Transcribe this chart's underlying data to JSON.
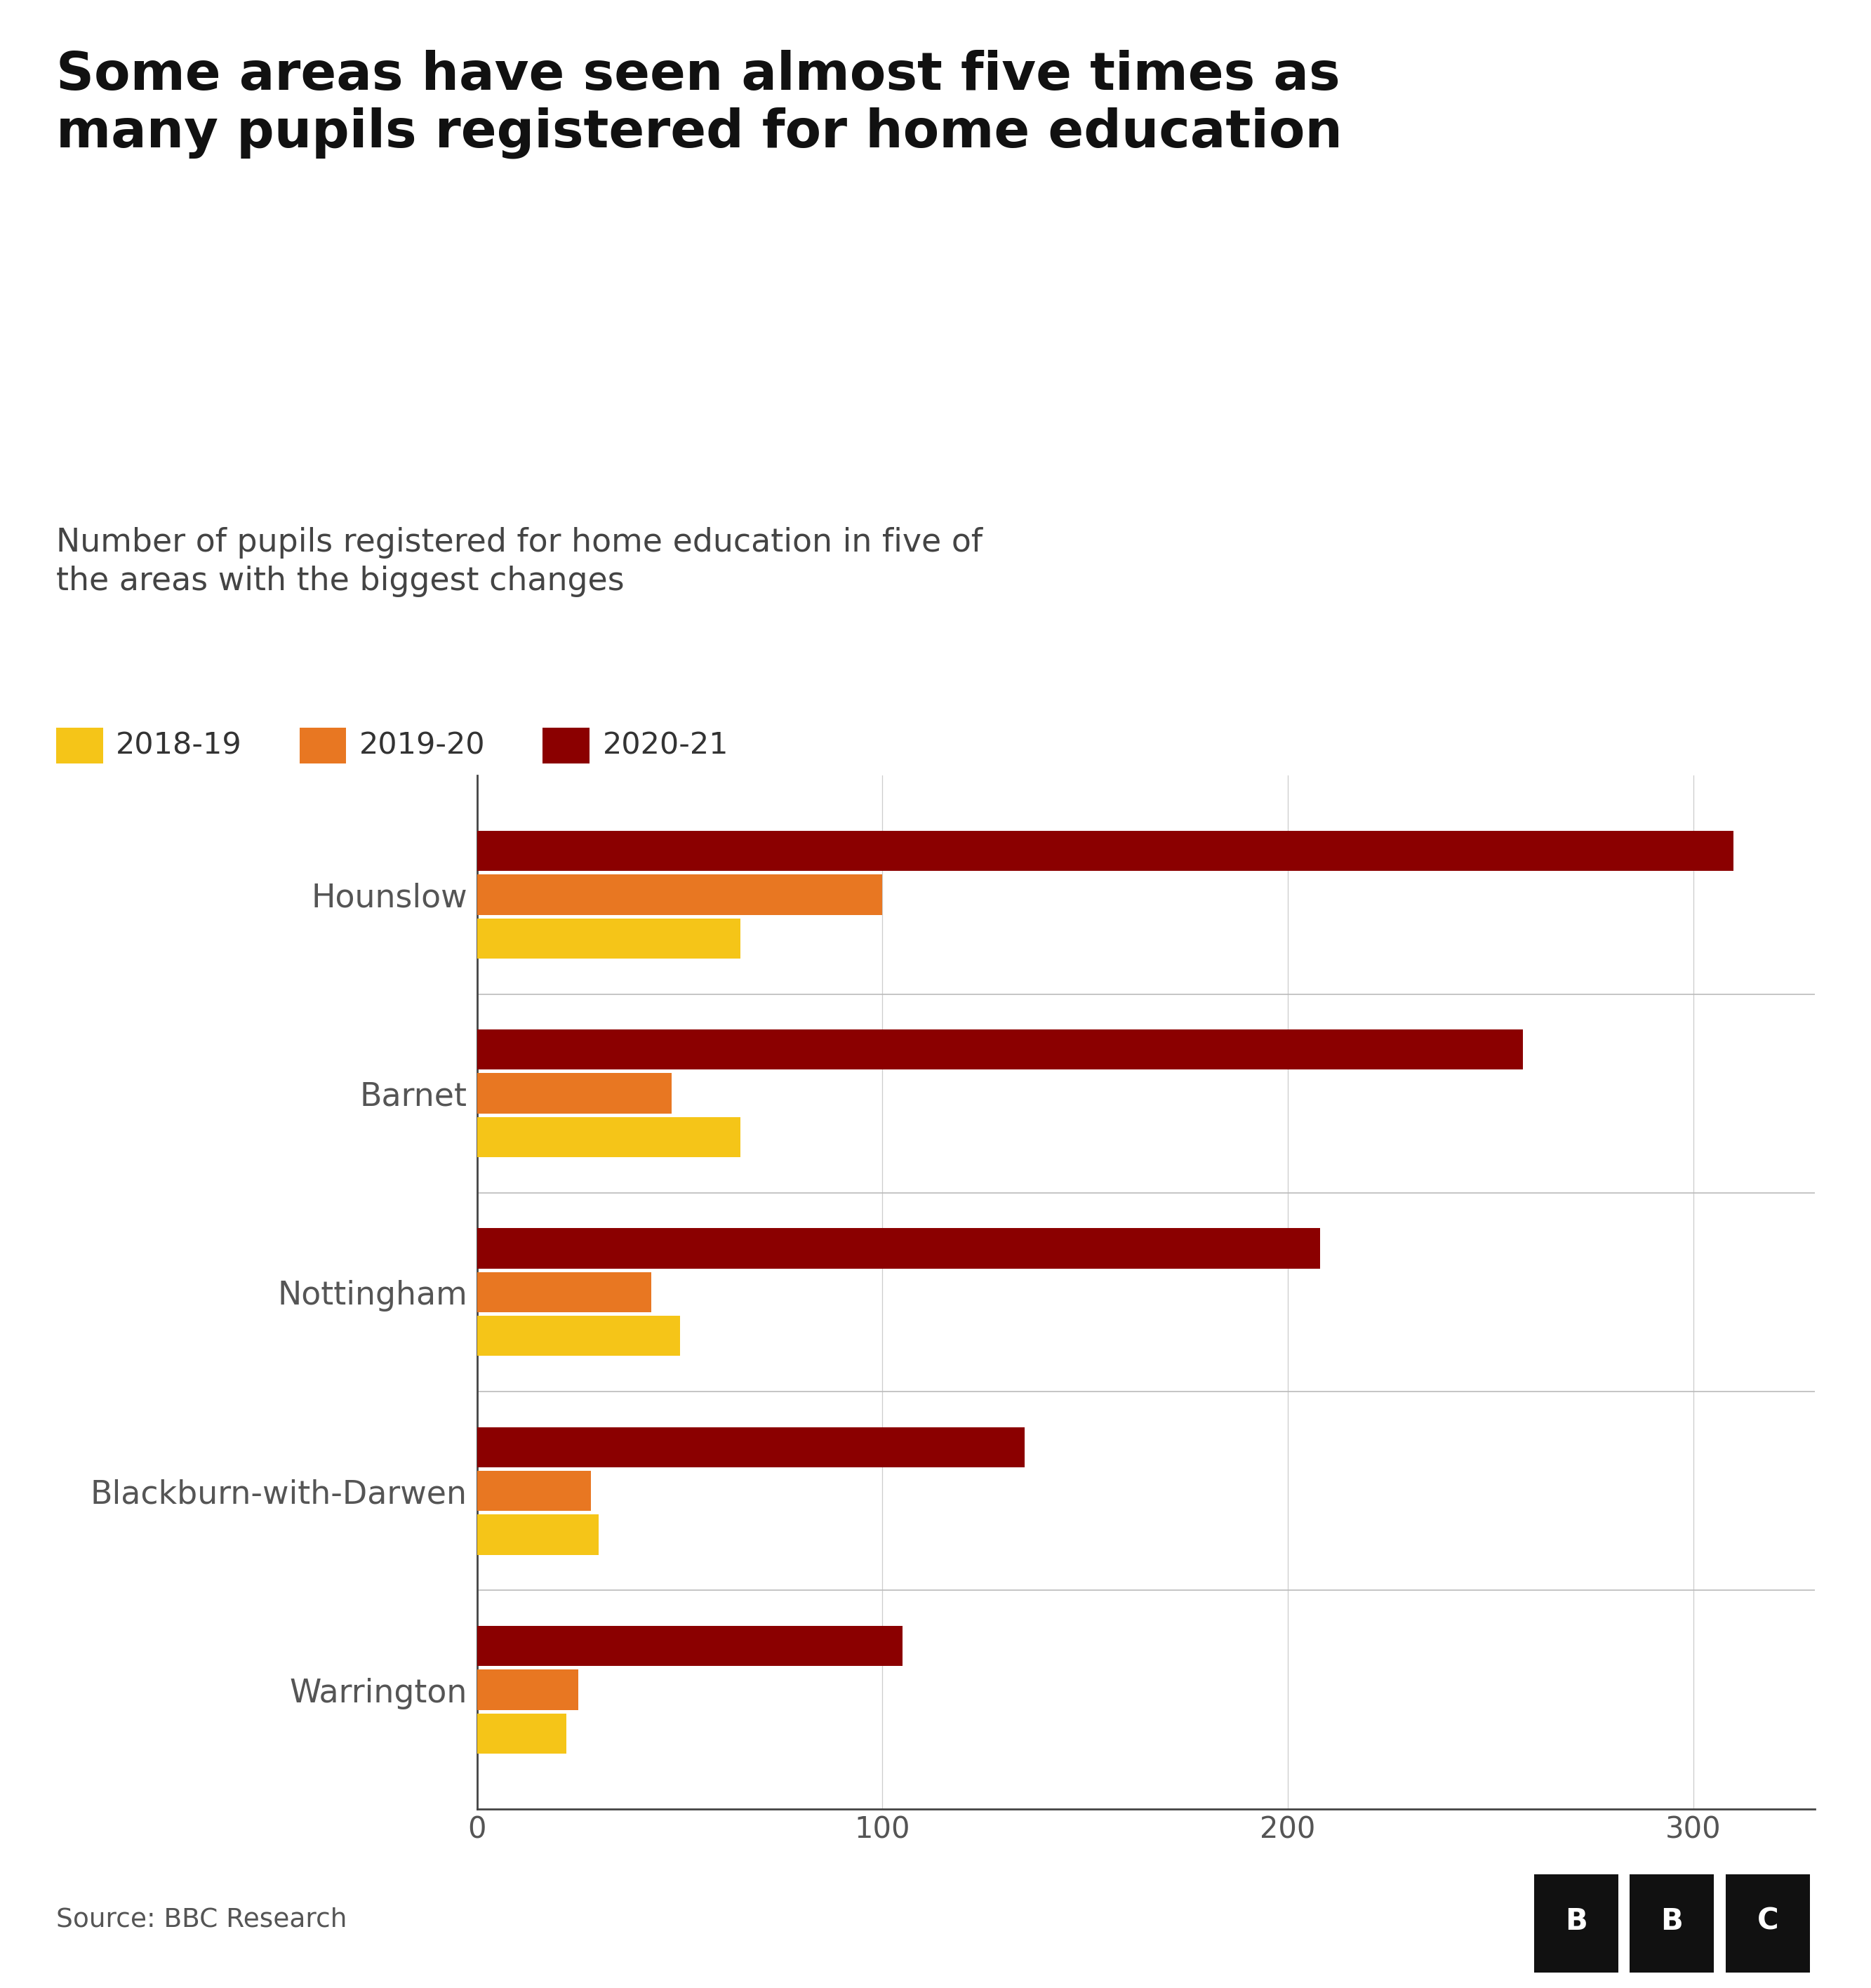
{
  "title": "Some areas have seen almost five times as\nmany pupils registered for home education",
  "subtitle": "Number of pupils registered for home education in five of\nthe areas with the biggest changes",
  "categories": [
    "Hounslow",
    "Barnet",
    "Nottingham",
    "Blackburn-with-Darwen",
    "Warrington"
  ],
  "series": {
    "2018-19": [
      65,
      65,
      50,
      30,
      22
    ],
    "2019-20": [
      100,
      48,
      43,
      28,
      25
    ],
    "2020-21": [
      310,
      258,
      208,
      135,
      105
    ]
  },
  "colors": {
    "2018-19": "#F5C518",
    "2019-20": "#E87722",
    "2020-21": "#8B0000"
  },
  "xlim": [
    0,
    330
  ],
  "xticks": [
    0,
    100,
    200,
    300
  ],
  "source": "Source: BBC Research",
  "background_color": "#FFFFFF",
  "title_fontsize": 54,
  "subtitle_fontsize": 33,
  "legend_fontsize": 31,
  "tick_fontsize": 30,
  "label_fontsize": 33,
  "source_fontsize": 27,
  "bar_height": 0.22
}
